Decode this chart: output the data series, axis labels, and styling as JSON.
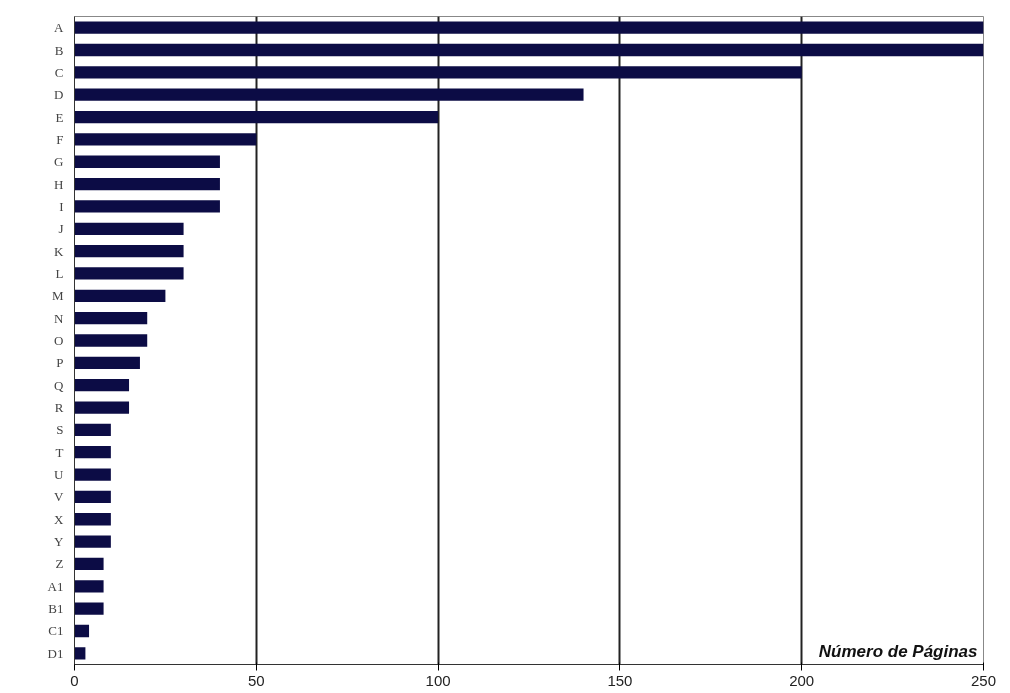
{
  "chart_data": {
    "type": "bar",
    "orientation": "horizontal",
    "xlabel": "Número de Páginas",
    "categories": [
      "A",
      "B",
      "C",
      "D",
      "E",
      "F",
      "G",
      "H",
      "I",
      "J",
      "K",
      "L",
      "M",
      "N",
      "O",
      "P",
      "Q",
      "R",
      "S",
      "T",
      "U",
      "V",
      "X",
      "Y",
      "Z",
      "A1",
      "B1",
      "C1",
      "D1"
    ],
    "values": [
      250,
      250,
      200,
      140,
      100,
      50,
      40,
      40,
      40,
      30,
      30,
      30,
      25,
      20,
      20,
      18,
      15,
      15,
      10,
      10,
      10,
      10,
      10,
      10,
      8,
      8,
      8,
      4,
      3
    ],
    "color": "#0c0c45",
    "xlim": [
      0,
      250
    ],
    "xticks": [
      0,
      50,
      100,
      150,
      200,
      250
    ],
    "grid": "x"
  }
}
